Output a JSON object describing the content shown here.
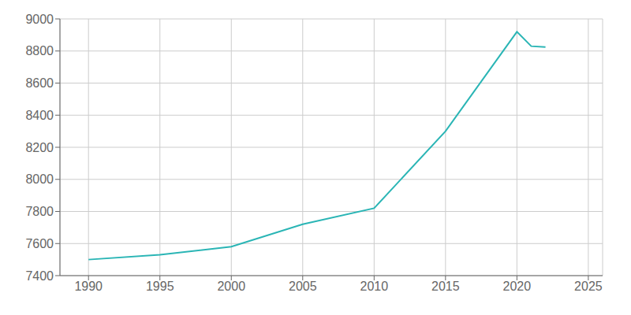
{
  "chart_data": {
    "type": "line",
    "x": [
      1990,
      1995,
      2000,
      2005,
      2010,
      2015,
      2020,
      2021,
      2022
    ],
    "values": [
      7500,
      7530,
      7580,
      7720,
      7820,
      8300,
      8920,
      8830,
      8825
    ],
    "color": "#2ab5b5",
    "xlim": [
      1988,
      2026
    ],
    "ylim": [
      7400,
      9000
    ],
    "xticks": [
      1990,
      1995,
      2000,
      2005,
      2010,
      2015,
      2020,
      2025
    ],
    "yticks": [
      7400,
      7600,
      7800,
      8000,
      8200,
      8400,
      8600,
      8800,
      9000
    ],
    "grid": true
  }
}
